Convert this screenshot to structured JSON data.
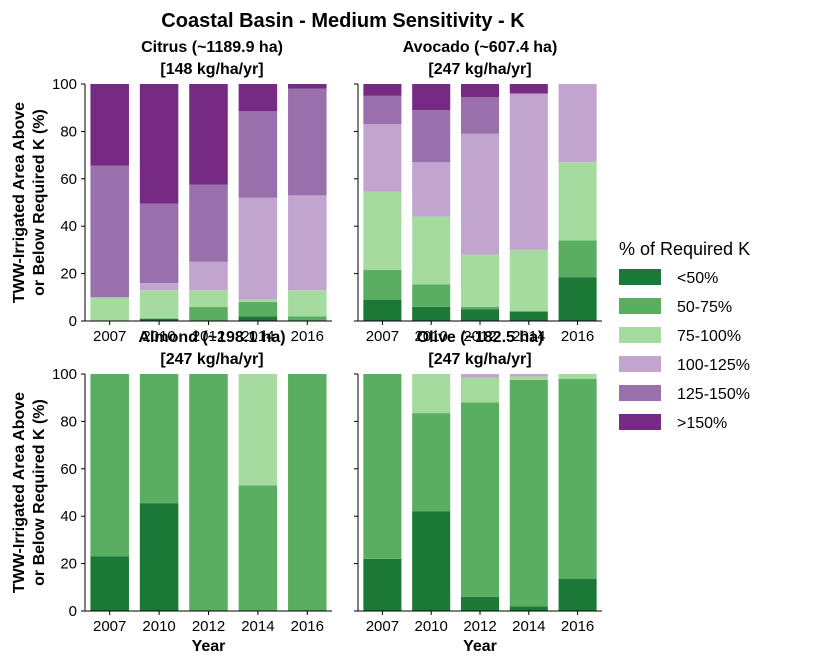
{
  "figure": {
    "title": "Coastal Basin - Medium Sensitivity - K"
  },
  "legend": {
    "title": "% of Required K",
    "items": [
      {
        "label": "<50%",
        "color": "#1b7837"
      },
      {
        "label": "50-75%",
        "color": "#5aae61"
      },
      {
        "label": "75-100%",
        "color": "#a6dba0"
      },
      {
        "label": "100-125%",
        "color": "#c2a5cf"
      },
      {
        "label": "125-150%",
        "color": "#9970ab"
      },
      {
        "label": ">150%",
        "color": "#762a83"
      }
    ]
  },
  "chart_data": [
    {
      "type": "bar",
      "stacked": true,
      "title_line1": "Citrus (~1189.9 ha)",
      "title_line2": "[148 kg/ha/yr]",
      "ylabel_line1": "TWW-Irrigated Area Above",
      "ylabel_line2": "or Below Required K (%)",
      "xlabel": "",
      "ylim": [
        0,
        100
      ],
      "yticks": [
        "0",
        "20",
        "40",
        "60",
        "80",
        "100"
      ],
      "categories": [
        "2007",
        "2010",
        "2012",
        "2014",
        "2016"
      ],
      "series": [
        {
          "name": "<50%",
          "values": [
            0,
            1,
            0,
            2,
            0
          ]
        },
        {
          "name": "50-75%",
          "values": [
            0,
            0,
            6,
            6,
            2
          ]
        },
        {
          "name": "75-100%",
          "values": [
            10,
            12,
            7,
            1,
            11
          ]
        },
        {
          "name": "100-125%",
          "values": [
            0,
            3,
            12,
            43,
            40
          ]
        },
        {
          "name": "125-150%",
          "values": [
            55.5,
            33.5,
            32.5,
            36.5,
            45
          ]
        },
        {
          "name": ">150%",
          "values": [
            34.5,
            50.5,
            42.5,
            11.5,
            2
          ]
        }
      ]
    },
    {
      "type": "bar",
      "stacked": true,
      "title_line1": "Avocado (~607.4 ha)",
      "title_line2": "[247 kg/ha/yr]",
      "ylabel_line1": "",
      "ylabel_line2": "",
      "xlabel": "",
      "ylim": [
        0,
        100
      ],
      "yticks": [],
      "categories": [
        "2007",
        "2010",
        "2012",
        "2014",
        "2016"
      ],
      "series": [
        {
          "name": "<50%",
          "values": [
            9,
            6,
            5,
            4,
            18.5
          ]
        },
        {
          "name": "50-75%",
          "values": [
            12.5,
            9.5,
            1,
            0,
            15.5
          ]
        },
        {
          "name": "75-100%",
          "values": [
            33,
            28.5,
            22,
            26,
            33
          ]
        },
        {
          "name": "100-125%",
          "values": [
            28.5,
            23,
            51,
            66,
            33
          ]
        },
        {
          "name": "125-150%",
          "values": [
            12,
            22,
            15.5,
            0,
            0
          ]
        },
        {
          "name": ">150%",
          "values": [
            5,
            11,
            5.5,
            4,
            0
          ]
        }
      ]
    },
    {
      "type": "bar",
      "stacked": true,
      "title_line1": "Almond (~198.1 ha)",
      "title_line2": "[247 kg/ha/yr]",
      "ylabel_line1": "TWW-Irrigated Area Above",
      "ylabel_line2": "or Below Required K (%)",
      "xlabel": "Year",
      "ylim": [
        0,
        100
      ],
      "yticks": [
        "0",
        "20",
        "40",
        "60",
        "80",
        "100"
      ],
      "categories": [
        "2007",
        "2010",
        "2012",
        "2014",
        "2016"
      ],
      "series": [
        {
          "name": "<50%",
          "values": [
            23,
            45.5,
            0,
            0,
            0
          ]
        },
        {
          "name": "50-75%",
          "values": [
            77,
            54.5,
            100,
            53,
            100
          ]
        },
        {
          "name": "75-100%",
          "values": [
            0,
            0,
            0,
            47,
            0
          ]
        },
        {
          "name": "100-125%",
          "values": [
            0,
            0,
            0,
            0,
            0
          ]
        },
        {
          "name": "125-150%",
          "values": [
            0,
            0,
            0,
            0,
            0
          ]
        },
        {
          "name": ">150%",
          "values": [
            0,
            0,
            0,
            0,
            0
          ]
        }
      ]
    },
    {
      "type": "bar",
      "stacked": true,
      "title_line1": "Olive (~182.5 ha)",
      "title_line2": "[247 kg/ha/yr]",
      "ylabel_line1": "",
      "ylabel_line2": "",
      "xlabel": "Year",
      "ylim": [
        0,
        100
      ],
      "yticks": [],
      "categories": [
        "2007",
        "2010",
        "2012",
        "2014",
        "2016"
      ],
      "series": [
        {
          "name": "<50%",
          "values": [
            22,
            42,
            6,
            2,
            13.5
          ]
        },
        {
          "name": "50-75%",
          "values": [
            78,
            41.5,
            82,
            95.5,
            84.5
          ]
        },
        {
          "name": "75-100%",
          "values": [
            0,
            16.5,
            10.5,
            1.5,
            2
          ]
        },
        {
          "name": "100-125%",
          "values": [
            0,
            0,
            1.5,
            1,
            0
          ]
        },
        {
          "name": "125-150%",
          "values": [
            0,
            0,
            0,
            0,
            0
          ]
        },
        {
          "name": ">150%",
          "values": [
            0,
            0,
            0,
            0,
            0
          ]
        }
      ]
    }
  ]
}
